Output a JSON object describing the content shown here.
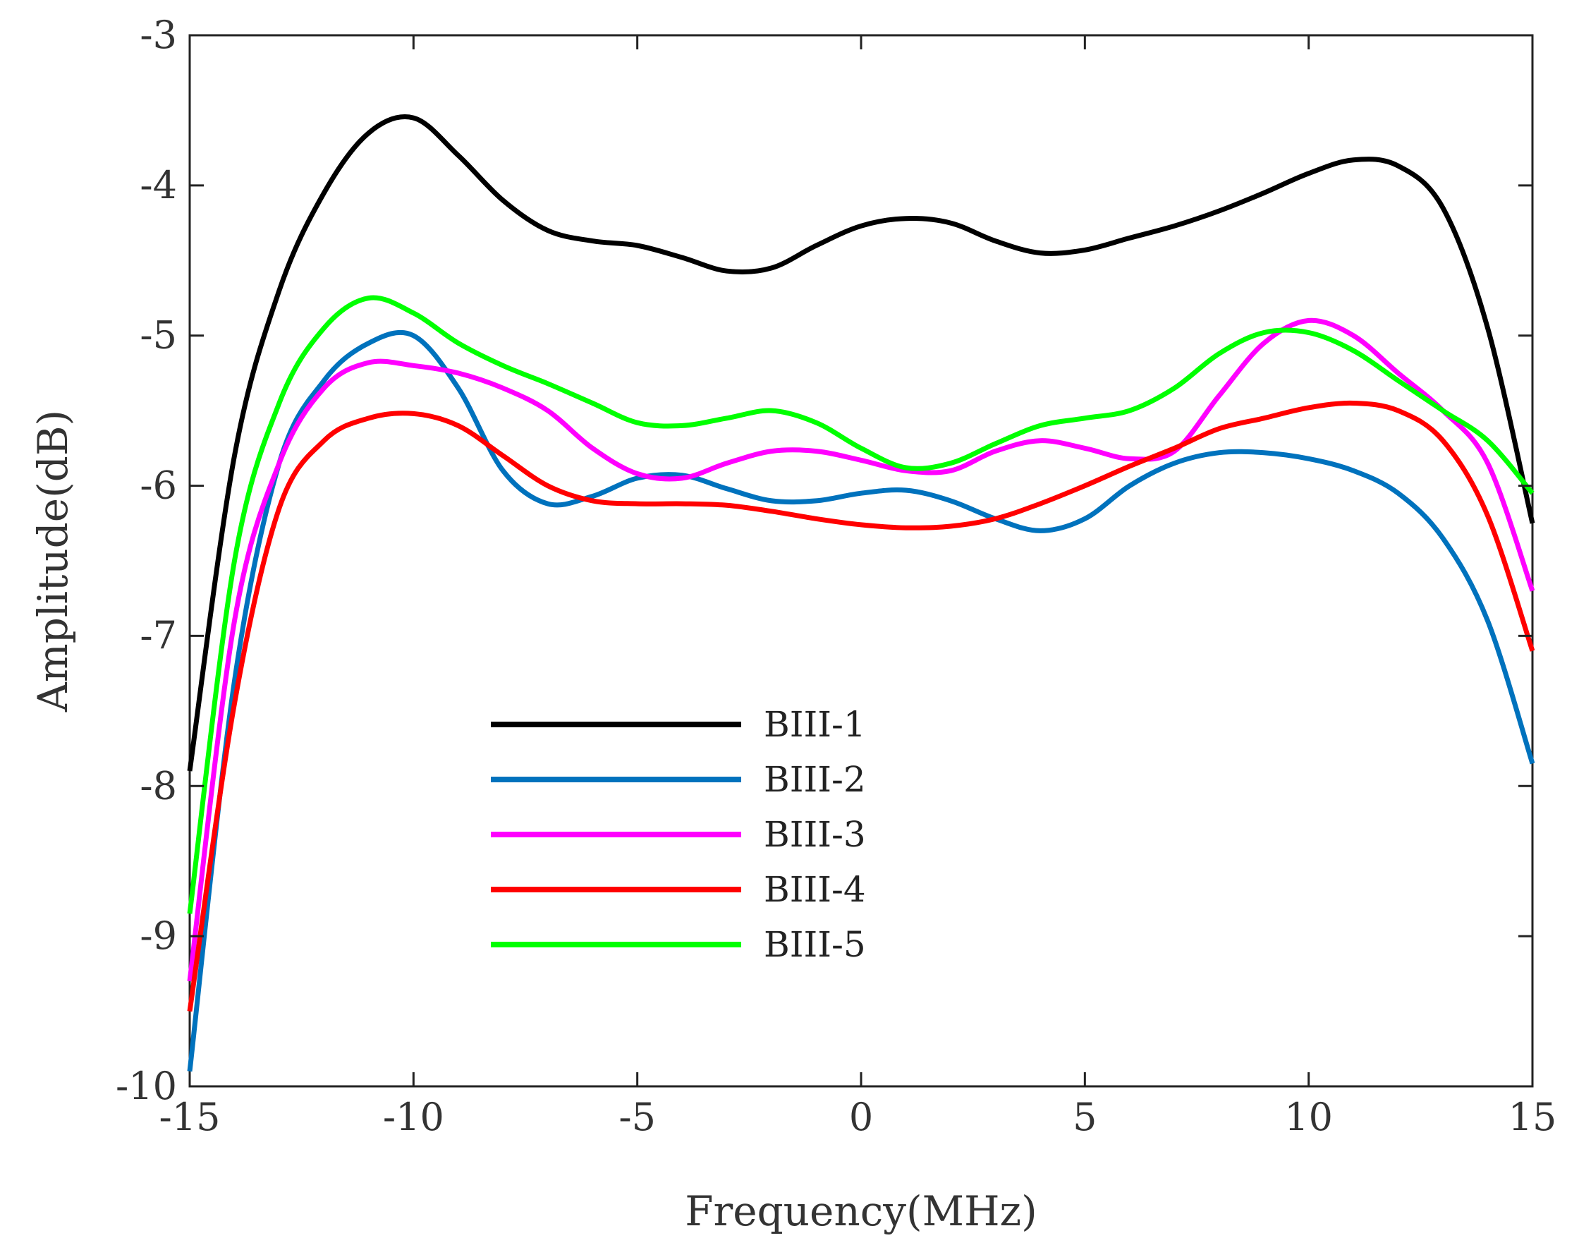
{
  "chart_data": {
    "type": "line",
    "title": "",
    "xlabel": "Frequency(MHz)",
    "ylabel": "Amplitude(dB)",
    "xlim": [
      -15,
      15
    ],
    "ylim": [
      -10,
      -3
    ],
    "xticks": [
      -15,
      -10,
      -5,
      0,
      5,
      10,
      15
    ],
    "yticks": [
      -10,
      -9,
      -8,
      -7,
      -6,
      -5,
      -4,
      -3
    ],
    "xtick_labels": [
      "-15",
      "-10",
      "-5",
      "0",
      "5",
      "10",
      "15"
    ],
    "ytick_labels": [
      "-10",
      "-9",
      "-8",
      "-7",
      "-6",
      "-5",
      "-4",
      "-3"
    ],
    "grid": false,
    "legend_position": "lower-center",
    "x": [
      -15,
      -14,
      -13,
      -12,
      -11,
      -10,
      -9,
      -8,
      -7,
      -6,
      -5,
      -4,
      -3,
      -2,
      -1,
      0,
      1,
      2,
      3,
      4,
      5,
      6,
      7,
      8,
      9,
      10,
      11,
      12,
      13,
      14,
      15
    ],
    "series": [
      {
        "name": "BIII-1",
        "color": "#000000",
        "values": [
          -7.9,
          -5.8,
          -4.7,
          -4.05,
          -3.65,
          -3.55,
          -3.8,
          -4.1,
          -4.3,
          -4.37,
          -4.4,
          -4.48,
          -4.57,
          -4.55,
          -4.4,
          -4.27,
          -4.22,
          -4.25,
          -4.37,
          -4.45,
          -4.43,
          -4.35,
          -4.27,
          -4.17,
          -4.05,
          -3.92,
          -3.83,
          -3.87,
          -4.15,
          -4.95,
          -6.25
        ]
      },
      {
        "name": "BIII-2",
        "color": "#0072BD",
        "values": [
          -9.9,
          -7.3,
          -5.85,
          -5.3,
          -5.05,
          -5.0,
          -5.35,
          -5.9,
          -6.12,
          -6.07,
          -5.95,
          -5.93,
          -6.02,
          -6.1,
          -6.1,
          -6.05,
          -6.03,
          -6.1,
          -6.22,
          -6.3,
          -6.22,
          -6.0,
          -5.85,
          -5.78,
          -5.78,
          -5.82,
          -5.9,
          -6.05,
          -6.35,
          -6.9,
          -7.85
        ]
      },
      {
        "name": "BIII-3",
        "color": "#FF00FF",
        "values": [
          -9.3,
          -6.9,
          -5.85,
          -5.35,
          -5.18,
          -5.2,
          -5.25,
          -5.35,
          -5.5,
          -5.75,
          -5.92,
          -5.95,
          -5.85,
          -5.77,
          -5.77,
          -5.83,
          -5.9,
          -5.9,
          -5.77,
          -5.7,
          -5.75,
          -5.82,
          -5.77,
          -5.4,
          -5.05,
          -4.9,
          -5.0,
          -5.25,
          -5.5,
          -5.85,
          -6.7
        ]
      },
      {
        "name": "BIII-4",
        "color": "#FF0000",
        "values": [
          -9.5,
          -7.45,
          -6.15,
          -5.7,
          -5.55,
          -5.52,
          -5.6,
          -5.8,
          -6.0,
          -6.1,
          -6.12,
          -6.12,
          -6.13,
          -6.17,
          -6.22,
          -6.26,
          -6.28,
          -6.27,
          -6.22,
          -6.12,
          -6.0,
          -5.87,
          -5.75,
          -5.62,
          -5.55,
          -5.48,
          -5.45,
          -5.5,
          -5.7,
          -6.2,
          -7.1
        ]
      },
      {
        "name": "BIII-5",
        "color": "#00FF00",
        "values": [
          -8.85,
          -6.5,
          -5.45,
          -4.95,
          -4.75,
          -4.85,
          -5.05,
          -5.2,
          -5.32,
          -5.45,
          -5.58,
          -5.6,
          -5.55,
          -5.5,
          -5.58,
          -5.75,
          -5.88,
          -5.85,
          -5.72,
          -5.6,
          -5.55,
          -5.5,
          -5.35,
          -5.12,
          -4.98,
          -4.98,
          -5.1,
          -5.3,
          -5.5,
          -5.7,
          -6.05
        ]
      }
    ]
  }
}
